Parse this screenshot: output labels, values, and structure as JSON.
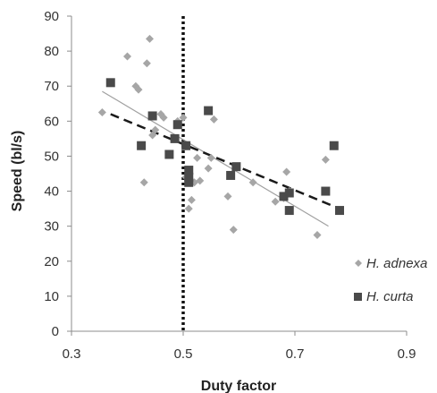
{
  "chart_data": {
    "type": "scatter",
    "xlabel": "Duty factor",
    "ylabel": "Speed (bl/s)",
    "xlim": [
      0.3,
      0.9
    ],
    "ylim": [
      0,
      90
    ],
    "x_ticks": [
      "0.3",
      "0.5",
      "0.7",
      "0.9"
    ],
    "y_ticks": [
      "0",
      "10",
      "20",
      "30",
      "40",
      "50",
      "60",
      "70",
      "80",
      "90"
    ],
    "grid": false,
    "legend_position": "bottom-right",
    "vertical_reference_line": {
      "x": 0.5,
      "style": "dotted"
    },
    "series": [
      {
        "name": "H. adnexa",
        "marker": "diamond",
        "color": "#a6a6a6",
        "points": [
          [
            0.355,
            62.5
          ],
          [
            0.4,
            78.5
          ],
          [
            0.415,
            70
          ],
          [
            0.42,
            69
          ],
          [
            0.43,
            42.5
          ],
          [
            0.435,
            76.5
          ],
          [
            0.44,
            83.5
          ],
          [
            0.445,
            56
          ],
          [
            0.45,
            57.5
          ],
          [
            0.46,
            62
          ],
          [
            0.465,
            61
          ],
          [
            0.49,
            60
          ],
          [
            0.5,
            61
          ],
          [
            0.505,
            44
          ],
          [
            0.51,
            35
          ],
          [
            0.515,
            37.5
          ],
          [
            0.52,
            42.5
          ],
          [
            0.525,
            49.5
          ],
          [
            0.53,
            43
          ],
          [
            0.545,
            46.5
          ],
          [
            0.55,
            49.5
          ],
          [
            0.555,
            60.5
          ],
          [
            0.58,
            38.5
          ],
          [
            0.59,
            29
          ],
          [
            0.595,
            47
          ],
          [
            0.625,
            42.5
          ],
          [
            0.665,
            37
          ],
          [
            0.68,
            38
          ],
          [
            0.685,
            45.5
          ],
          [
            0.69,
            40
          ],
          [
            0.74,
            27.5
          ],
          [
            0.755,
            49
          ]
        ]
      },
      {
        "name": "H. curta",
        "marker": "square",
        "color": "#4a4a4a",
        "points": [
          [
            0.37,
            71
          ],
          [
            0.425,
            53
          ],
          [
            0.445,
            61.5
          ],
          [
            0.475,
            50.5
          ],
          [
            0.485,
            55
          ],
          [
            0.49,
            59
          ],
          [
            0.505,
            53
          ],
          [
            0.51,
            46
          ],
          [
            0.51,
            44
          ],
          [
            0.51,
            42.5
          ],
          [
            0.545,
            63
          ],
          [
            0.585,
            44.5
          ],
          [
            0.595,
            47
          ],
          [
            0.68,
            38.5
          ],
          [
            0.69,
            34.5
          ],
          [
            0.69,
            39.5
          ],
          [
            0.755,
            40
          ],
          [
            0.77,
            53
          ],
          [
            0.78,
            34.5
          ]
        ]
      }
    ],
    "trendlines": [
      {
        "series": "H. adnexa",
        "style": "solid-thin",
        "color": "#a0a0a0",
        "from": [
          0.355,
          68.5
        ],
        "to": [
          0.76,
          30
        ]
      },
      {
        "series": "H. curta",
        "style": "dashed",
        "color": "#1a1a1a",
        "from": [
          0.37,
          62
        ],
        "to": [
          0.78,
          35
        ]
      }
    ]
  }
}
